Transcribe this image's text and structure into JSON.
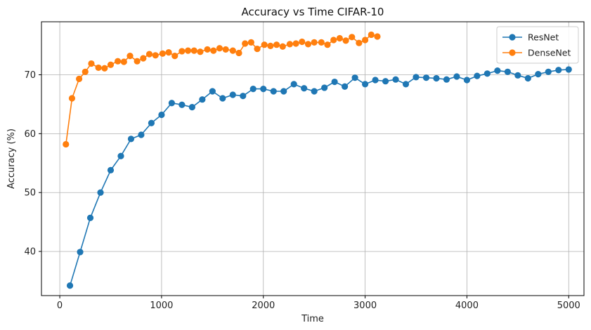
{
  "chart_data": {
    "type": "line",
    "title": "Accuracy vs Time CIFAR-10",
    "xlabel": "Time",
    "ylabel": "Accuracy (%)",
    "xlim": [
      -180,
      5150
    ],
    "ylim": [
      32.5,
      79
    ],
    "xticks": [
      0,
      1000,
      2000,
      3000,
      4000,
      5000
    ],
    "yticks": [
      40,
      50,
      60,
      70
    ],
    "grid": true,
    "legend_position": "top-right",
    "series": [
      {
        "name": "ResNet",
        "color": "#1f77b4",
        "marker": "circle",
        "points": [
          [
            100,
            34.2
          ],
          [
            200,
            39.9
          ],
          [
            300,
            45.7
          ],
          [
            400,
            50.0
          ],
          [
            500,
            53.8
          ],
          [
            600,
            56.2
          ],
          [
            700,
            59.1
          ],
          [
            800,
            59.8
          ],
          [
            900,
            61.8
          ],
          [
            1000,
            63.2
          ],
          [
            1100,
            65.2
          ],
          [
            1200,
            64.9
          ],
          [
            1300,
            64.5
          ],
          [
            1400,
            65.8
          ],
          [
            1500,
            67.2
          ],
          [
            1600,
            66.0
          ],
          [
            1700,
            66.6
          ],
          [
            1800,
            66.4
          ],
          [
            1900,
            67.6
          ],
          [
            2000,
            67.6
          ],
          [
            2100,
            67.2
          ],
          [
            2200,
            67.2
          ],
          [
            2300,
            68.4
          ],
          [
            2400,
            67.7
          ],
          [
            2500,
            67.2
          ],
          [
            2600,
            67.8
          ],
          [
            2700,
            68.8
          ],
          [
            2800,
            68.0
          ],
          [
            2900,
            69.5
          ],
          [
            3000,
            68.4
          ],
          [
            3100,
            69.1
          ],
          [
            3200,
            68.9
          ],
          [
            3300,
            69.2
          ],
          [
            3400,
            68.4
          ],
          [
            3500,
            69.6
          ],
          [
            3600,
            69.5
          ],
          [
            3700,
            69.4
          ],
          [
            3800,
            69.2
          ],
          [
            3900,
            69.7
          ],
          [
            4000,
            69.1
          ],
          [
            4100,
            69.8
          ],
          [
            4200,
            70.2
          ],
          [
            4300,
            70.7
          ],
          [
            4400,
            70.5
          ],
          [
            4500,
            69.9
          ],
          [
            4600,
            69.4
          ],
          [
            4700,
            70.1
          ],
          [
            4800,
            70.5
          ],
          [
            4900,
            70.8
          ],
          [
            5000,
            70.9
          ]
        ]
      },
      {
        "name": "DenseNet",
        "color": "#ff7f0e",
        "marker": "circle",
        "points": [
          [
            60,
            58.2
          ],
          [
            120,
            66.0
          ],
          [
            190,
            69.3
          ],
          [
            250,
            70.5
          ],
          [
            310,
            71.9
          ],
          [
            380,
            71.2
          ],
          [
            440,
            71.1
          ],
          [
            500,
            71.7
          ],
          [
            570,
            72.3
          ],
          [
            630,
            72.2
          ],
          [
            690,
            73.2
          ],
          [
            760,
            72.3
          ],
          [
            820,
            72.8
          ],
          [
            880,
            73.5
          ],
          [
            940,
            73.3
          ],
          [
            1010,
            73.6
          ],
          [
            1070,
            73.8
          ],
          [
            1130,
            73.2
          ],
          [
            1200,
            74.0
          ],
          [
            1260,
            74.1
          ],
          [
            1320,
            74.1
          ],
          [
            1380,
            73.9
          ],
          [
            1450,
            74.3
          ],
          [
            1510,
            74.1
          ],
          [
            1570,
            74.5
          ],
          [
            1630,
            74.3
          ],
          [
            1700,
            74.1
          ],
          [
            1760,
            73.7
          ],
          [
            1820,
            75.3
          ],
          [
            1880,
            75.5
          ],
          [
            1940,
            74.4
          ],
          [
            2010,
            75.1
          ],
          [
            2070,
            74.9
          ],
          [
            2130,
            75.1
          ],
          [
            2190,
            74.8
          ],
          [
            2260,
            75.2
          ],
          [
            2320,
            75.3
          ],
          [
            2380,
            75.6
          ],
          [
            2440,
            75.2
          ],
          [
            2500,
            75.5
          ],
          [
            2570,
            75.5
          ],
          [
            2630,
            75.1
          ],
          [
            2690,
            75.9
          ],
          [
            2750,
            76.2
          ],
          [
            2810,
            75.8
          ],
          [
            2870,
            76.4
          ],
          [
            2940,
            75.4
          ],
          [
            3000,
            75.9
          ],
          [
            3060,
            76.8
          ],
          [
            3120,
            76.5
          ]
        ]
      }
    ]
  }
}
